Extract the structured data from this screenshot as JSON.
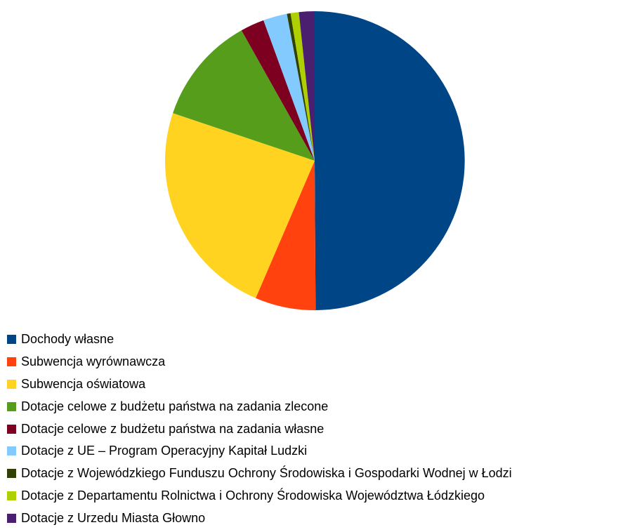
{
  "chart_data": {
    "type": "pie",
    "title": "",
    "start_angle_deg": 0,
    "direction": "clockwise",
    "legend_position": "bottom-left",
    "slices": [
      {
        "label": "Dochody własne",
        "value": 50.3,
        "color": "#004586"
      },
      {
        "label": "Subwencja wyrównawcza",
        "value": 6.6,
        "color": "#FF420E"
      },
      {
        "label": "Subwencja oświatowa",
        "value": 23.9,
        "color": "#FFD320"
      },
      {
        "label": "Dotacje celowe z budżetu państwa na zadania zlecone",
        "value": 11.8,
        "color": "#579D1C"
      },
      {
        "label": "Dotacje celowe z budżetu państwa na zadania własne",
        "value": 2.6,
        "color": "#7E0021"
      },
      {
        "label": "Dotacje z UE – Program Operacyjny Kapitał Ludzki",
        "value": 2.6,
        "color": "#83CAFF"
      },
      {
        "label": "Dotacje z Wojewódzkiego Funduszu Ochrony Środowiska i Gospodarki Wodnej w Łodzi",
        "value": 0.4,
        "color": "#314004"
      },
      {
        "label": "Dotacje z Departamentu Rolnictwa i Ochrony Środowiska Województwa Łódzkiego",
        "value": 0.9,
        "color": "#AECF00"
      },
      {
        "label": "Dotacje z Urzedu Miasta Głowno",
        "value": 1.7,
        "color": "#4B1F6F"
      }
    ]
  }
}
